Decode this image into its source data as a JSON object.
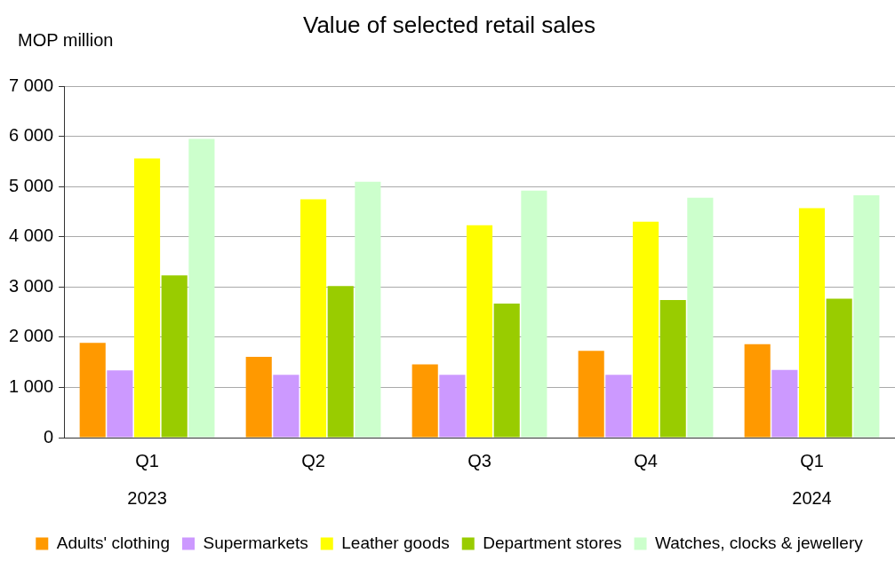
{
  "chart_data": {
    "type": "bar",
    "title": "Value of selected retail sales",
    "ylabel": "MOP million",
    "categories": [
      "Q1\n2023",
      "Q2",
      "Q3",
      "Q4",
      "Q1\n2024"
    ],
    "series": [
      {
        "name": "Adults' clothing",
        "color": "#ff9900",
        "values": [
          1890,
          1610,
          1460,
          1730,
          1860
        ]
      },
      {
        "name": "Supermarkets",
        "color": "#cc99ff",
        "values": [
          1340,
          1250,
          1250,
          1250,
          1350
        ]
      },
      {
        "name": "Leather goods",
        "color": "#ffff00",
        "values": [
          5560,
          4750,
          4230,
          4300,
          4570
        ]
      },
      {
        "name": "Department stores",
        "color": "#99cc00",
        "values": [
          3230,
          3020,
          2670,
          2740,
          2770
        ]
      },
      {
        "name": "Watches, clocks & jewellery",
        "color": "#ccffcc",
        "values": [
          5950,
          5100,
          4920,
          4780,
          4830
        ]
      }
    ],
    "ylim": [
      0,
      7000
    ],
    "yticks": [
      {
        "value": 0,
        "label": "0"
      },
      {
        "value": 1000,
        "label": "1 000"
      },
      {
        "value": 2000,
        "label": "2 000"
      },
      {
        "value": 3000,
        "label": "3 000"
      },
      {
        "value": 4000,
        "label": "4 000"
      },
      {
        "value": 5000,
        "label": "5 000"
      },
      {
        "value": 6000,
        "label": "6 000"
      },
      {
        "value": 7000,
        "label": "7 000"
      }
    ],
    "grid": "y",
    "legend": "bottom"
  }
}
